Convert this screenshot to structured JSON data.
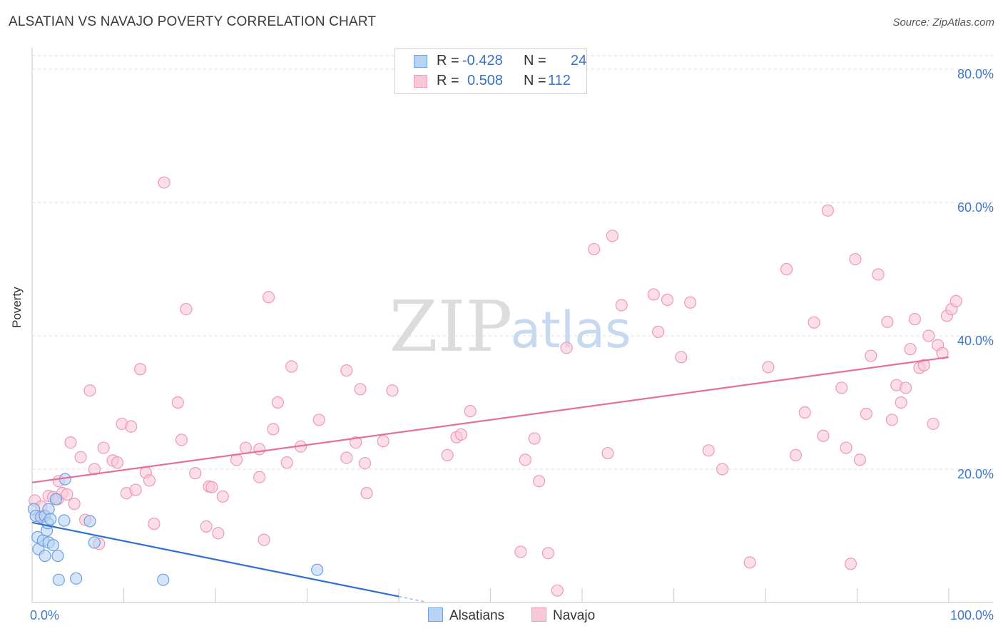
{
  "header": {
    "title": "ALSATIAN VS NAVAJO POVERTY CORRELATION CHART",
    "source": "Source: ZipAtlas.com"
  },
  "colors": {
    "alsatians_fill": "#b8d4f4",
    "alsatians_stroke": "#6e9fe0",
    "alsatians_line": "#2f6fd0",
    "navajo_fill": "#f8c8d8",
    "navajo_stroke": "#ec9ab8",
    "navajo_line": "#e5709a",
    "axis_label": "#3f78c8",
    "grid": "#dddddd"
  },
  "legend": {
    "rows": [
      {
        "r_label": "R =",
        "r_value": "-0.428",
        "n_label": "N =",
        "n_value": "24"
      },
      {
        "r_label": "R =",
        "r_value": "0.508",
        "n_label": "N =",
        "n_value": "112"
      }
    ]
  },
  "bottom_legend": {
    "items": [
      {
        "label": "Alsatians"
      },
      {
        "label": "Navajo"
      }
    ]
  },
  "watermark": {
    "zip": "ZIP",
    "atlas": "atlas"
  },
  "chart_data": {
    "type": "scatter",
    "title": "ALSATIAN VS NAVAJO POVERTY CORRELATION CHART",
    "xlabel": "",
    "ylabel": "Poverty",
    "xlim": [
      0,
      100
    ],
    "ylim": [
      0,
      80
    ],
    "x_tick_labels": {
      "left": "0.0%",
      "right": "100.0%"
    },
    "y_ticks": [
      20,
      40,
      60,
      80
    ],
    "y_tick_labels": [
      "20.0%",
      "40.0%",
      "60.0%",
      "80.0%"
    ],
    "grid": true,
    "series": [
      {
        "name": "Alsatians",
        "r": -0.428,
        "n": 24,
        "trend": {
          "x": [
            0,
            40
          ],
          "y": [
            12.0,
            0.9
          ]
        },
        "points": [
          [
            0.2,
            14.0
          ],
          [
            0.4,
            13.0
          ],
          [
            0.6,
            9.8
          ],
          [
            0.7,
            8.0
          ],
          [
            1.0,
            12.8
          ],
          [
            1.2,
            9.3
          ],
          [
            1.4,
            13.0
          ],
          [
            1.4,
            7.0
          ],
          [
            1.8,
            9.0
          ],
          [
            1.6,
            10.8
          ],
          [
            1.7,
            11.9
          ],
          [
            1.8,
            14.0
          ],
          [
            2.0,
            12.5
          ],
          [
            2.3,
            8.6
          ],
          [
            2.6,
            15.5
          ],
          [
            2.8,
            7.0
          ],
          [
            2.9,
            3.4
          ],
          [
            3.5,
            12.3
          ],
          [
            3.6,
            18.5
          ],
          [
            4.8,
            3.6
          ],
          [
            6.3,
            12.2
          ],
          [
            6.8,
            9.0
          ],
          [
            14.3,
            3.4
          ],
          [
            31.1,
            4.9
          ]
        ]
      },
      {
        "name": "Navajo",
        "r": 0.508,
        "n": 112,
        "trend": {
          "x": [
            0,
            100
          ],
          "y": [
            18.0,
            36.8
          ]
        },
        "points": [
          [
            0.3,
            15.3
          ],
          [
            0.8,
            13.0
          ],
          [
            1.0,
            14.4
          ],
          [
            1.3,
            12.9
          ],
          [
            1.8,
            16.0
          ],
          [
            2.3,
            15.8
          ],
          [
            2.8,
            15.5
          ],
          [
            2.9,
            18.2
          ],
          [
            3.3,
            16.4
          ],
          [
            3.8,
            16.2
          ],
          [
            4.2,
            24.0
          ],
          [
            4.6,
            14.8
          ],
          [
            5.3,
            21.8
          ],
          [
            5.8,
            12.4
          ],
          [
            6.3,
            31.8
          ],
          [
            6.8,
            20.0
          ],
          [
            7.3,
            8.8
          ],
          [
            7.8,
            23.2
          ],
          [
            8.8,
            21.3
          ],
          [
            9.3,
            21.0
          ],
          [
            9.8,
            26.8
          ],
          [
            10.3,
            16.4
          ],
          [
            10.8,
            26.4
          ],
          [
            11.3,
            16.9
          ],
          [
            11.8,
            35.0
          ],
          [
            12.4,
            19.5
          ],
          [
            12.8,
            18.3
          ],
          [
            13.3,
            11.8
          ],
          [
            14.4,
            63.0
          ],
          [
            15.9,
            30.0
          ],
          [
            16.3,
            24.4
          ],
          [
            16.8,
            44.0
          ],
          [
            17.8,
            19.4
          ],
          [
            19.0,
            11.4
          ],
          [
            19.3,
            17.4
          ],
          [
            19.6,
            17.3
          ],
          [
            20.3,
            10.4
          ],
          [
            20.8,
            15.9
          ],
          [
            22.3,
            21.4
          ],
          [
            23.3,
            23.2
          ],
          [
            24.8,
            23.0
          ],
          [
            24.8,
            18.8
          ],
          [
            25.3,
            9.4
          ],
          [
            25.8,
            45.8
          ],
          [
            26.3,
            26.0
          ],
          [
            26.8,
            30.0
          ],
          [
            27.8,
            21.0
          ],
          [
            28.3,
            35.4
          ],
          [
            29.3,
            23.4
          ],
          [
            31.3,
            27.4
          ],
          [
            34.3,
            34.8
          ],
          [
            34.3,
            21.7
          ],
          [
            35.3,
            24.0
          ],
          [
            35.8,
            32.0
          ],
          [
            36.3,
            20.9
          ],
          [
            36.5,
            16.4
          ],
          [
            38.3,
            24.2
          ],
          [
            39.3,
            31.8
          ],
          [
            45.3,
            22.1
          ],
          [
            46.3,
            24.8
          ],
          [
            46.8,
            25.2
          ],
          [
            47.8,
            28.7
          ],
          [
            53.3,
            7.6
          ],
          [
            53.8,
            21.4
          ],
          [
            54.8,
            24.6
          ],
          [
            55.3,
            18.2
          ],
          [
            56.3,
            7.4
          ],
          [
            57.3,
            1.8
          ],
          [
            58.3,
            38.2
          ],
          [
            61.3,
            53.0
          ],
          [
            62.8,
            22.4
          ],
          [
            63.3,
            55.0
          ],
          [
            64.3,
            44.6
          ],
          [
            67.8,
            46.2
          ],
          [
            68.3,
            40.6
          ],
          [
            69.3,
            45.4
          ],
          [
            70.8,
            36.8
          ],
          [
            71.8,
            45.0
          ],
          [
            73.8,
            22.8
          ],
          [
            75.3,
            20.0
          ],
          [
            78.3,
            6.0
          ],
          [
            80.3,
            35.3
          ],
          [
            82.3,
            50.0
          ],
          [
            83.3,
            22.1
          ],
          [
            84.3,
            28.5
          ],
          [
            85.3,
            42.0
          ],
          [
            86.3,
            25.0
          ],
          [
            86.8,
            58.8
          ],
          [
            88.3,
            32.2
          ],
          [
            88.8,
            23.2
          ],
          [
            89.3,
            5.8
          ],
          [
            89.8,
            51.5
          ],
          [
            90.3,
            21.4
          ],
          [
            91.0,
            28.3
          ],
          [
            91.5,
            37.0
          ],
          [
            92.3,
            49.2
          ],
          [
            93.3,
            42.1
          ],
          [
            93.8,
            27.4
          ],
          [
            94.3,
            32.6
          ],
          [
            94.8,
            30.0
          ],
          [
            95.3,
            32.2
          ],
          [
            95.8,
            38.0
          ],
          [
            96.3,
            42.5
          ],
          [
            96.8,
            35.2
          ],
          [
            97.3,
            35.6
          ],
          [
            97.8,
            40.0
          ],
          [
            98.3,
            26.8
          ],
          [
            98.8,
            38.6
          ],
          [
            99.3,
            37.4
          ],
          [
            99.8,
            43.0
          ],
          [
            100.3,
            44.0
          ],
          [
            100.8,
            45.2
          ]
        ]
      }
    ]
  }
}
